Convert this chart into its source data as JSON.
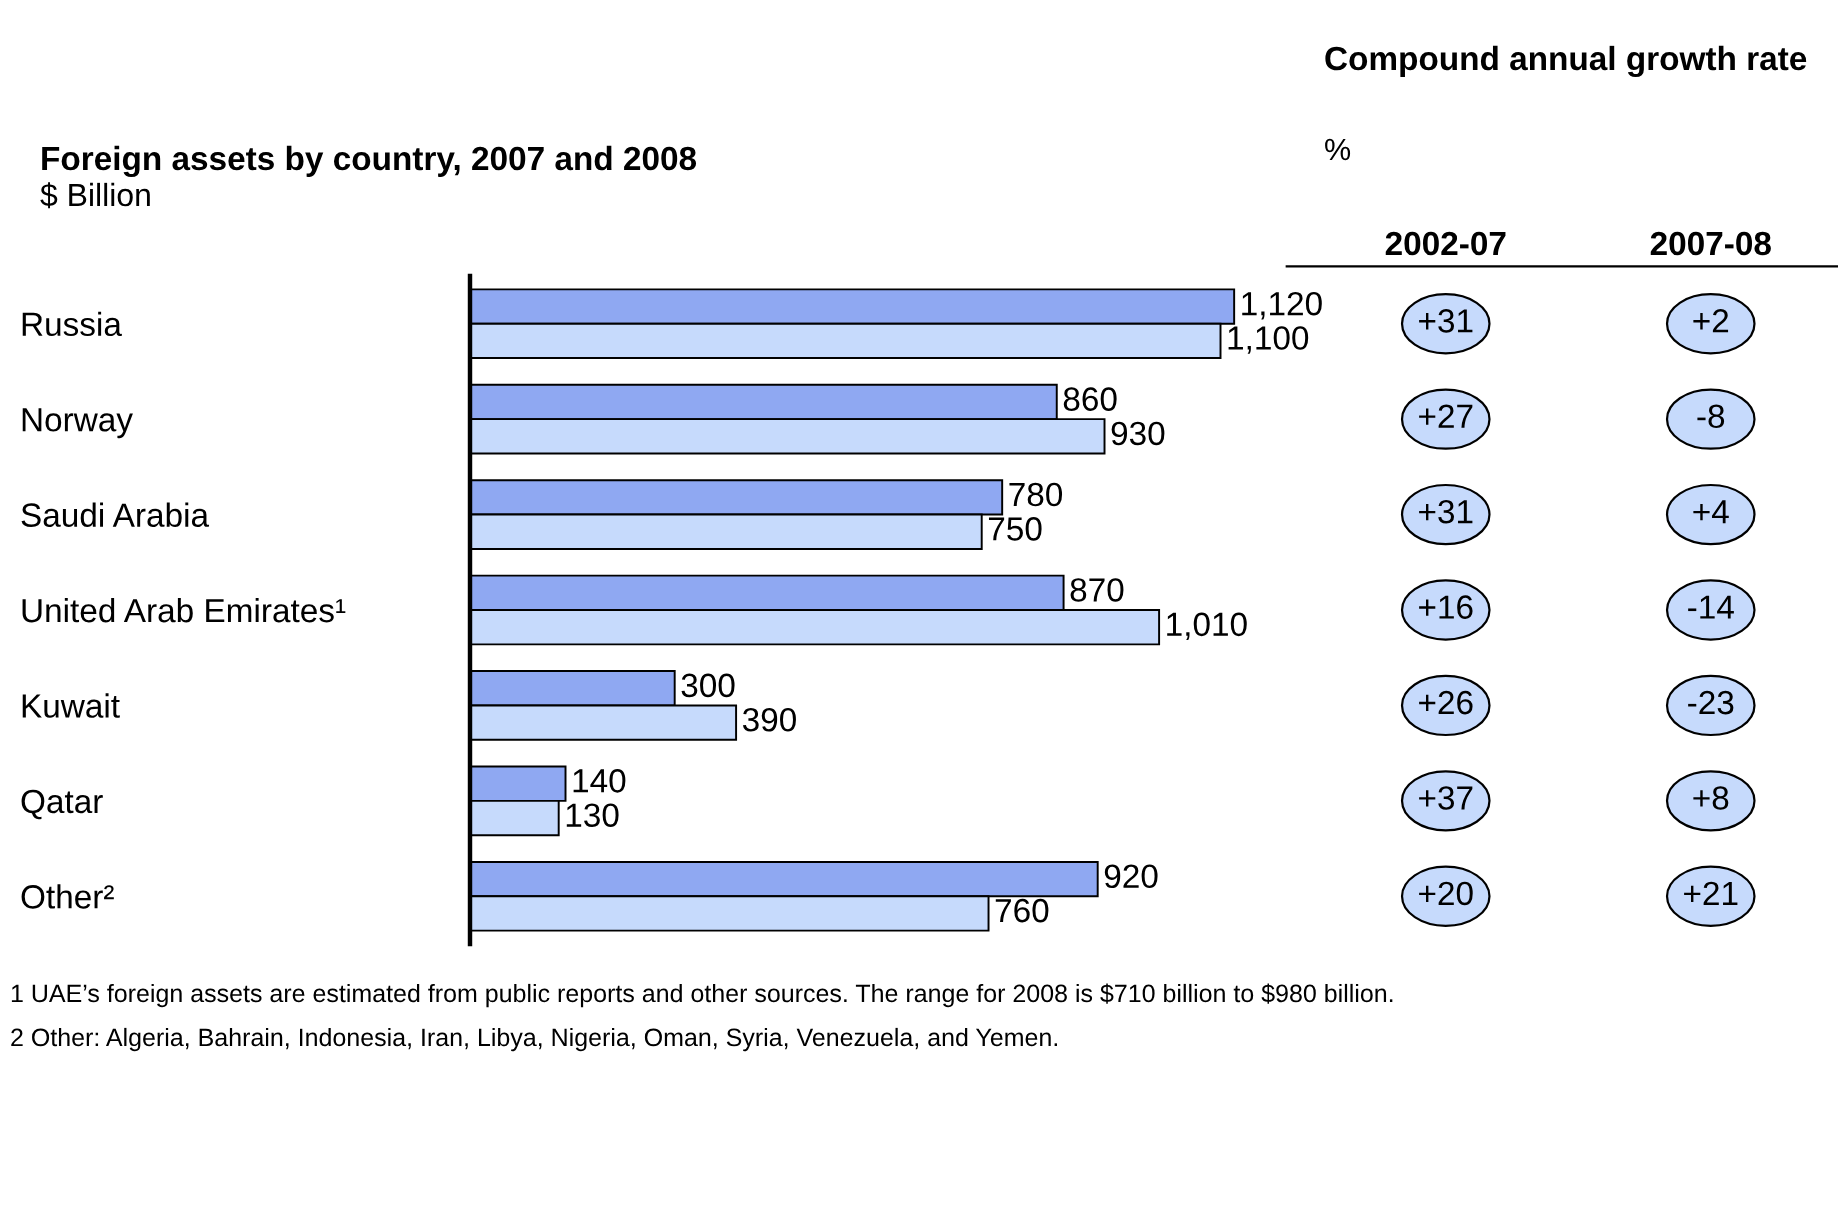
{
  "chart_data": [
    {
      "type": "bar",
      "orientation": "horizontal",
      "title": "Foreign assets by country, 2007 and 2008",
      "subtitle": "$ Billion",
      "categories": [
        "Russia",
        "Norway",
        "Saudi Arabia",
        "United Arab Emirates¹",
        "Kuwait",
        "Qatar",
        "Other²"
      ],
      "series": [
        {
          "color": "#8fa8f2",
          "values": [
            1120,
            860,
            780,
            870,
            300,
            140,
            920
          ],
          "value_labels": [
            "1,120",
            "860",
            "780",
            "870",
            "300",
            "140",
            "920"
          ]
        },
        {
          "color": "#c6dafc",
          "values": [
            1100,
            930,
            750,
            1010,
            390,
            130,
            760
          ],
          "value_labels": [
            "1,100",
            "930",
            "750",
            "1,010",
            "390",
            "130",
            "760"
          ]
        }
      ],
      "tick_labels": "y",
      "grid": false,
      "legend": false,
      "annotations": [
        "1 UAE’s foreign assets are estimated from public reports and other sources. The range for 2008 is $710 billion to $980 billion.",
        "2 Other: Algeria, Bahrain, Indonesia, Iran, Libya, Nigeria, Oman, Syria, Venezuela, and Yemen."
      ]
    },
    {
      "type": "other",
      "title": "Compound annual growth rate",
      "subtitle": "%",
      "categories": [
        "2002-07",
        "2007-08"
      ],
      "annotations": [
        "+31",
        "+2",
        "+27",
        "-8",
        "+31",
        "+4",
        "+16",
        "-14",
        "+26",
        "-23",
        "+37",
        "+8",
        "+20",
        "+21"
      ]
    }
  ]
}
